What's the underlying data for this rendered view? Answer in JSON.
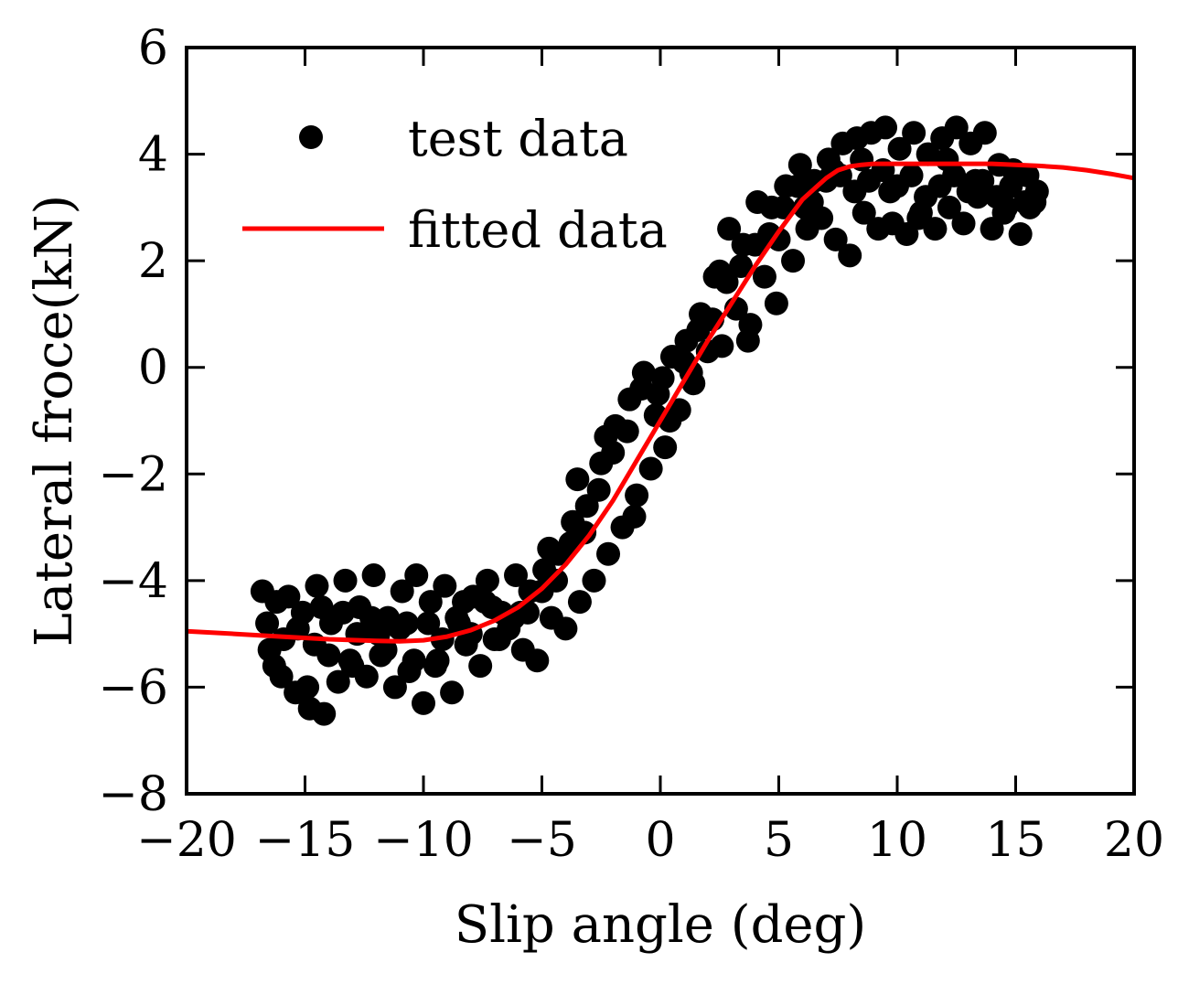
{
  "chart_data": {
    "type": "scatter",
    "title": "",
    "xlabel": "Slip angle (deg)",
    "ylabel": "Lateral froce(kN)",
    "xlim": [
      -20,
      20
    ],
    "ylim": [
      -8,
      6
    ],
    "xticks": [
      -20,
      -15,
      -10,
      -5,
      0,
      5,
      10,
      15,
      20
    ],
    "yticks": [
      -8,
      -6,
      -4,
      -2,
      0,
      2,
      4,
      6
    ],
    "xtick_labels": [
      "−20",
      "−15",
      "−10",
      "−5",
      "0",
      "5",
      "10",
      "15",
      "20"
    ],
    "ytick_labels": [
      "−8",
      "−6",
      "−4",
      "−2",
      "0",
      "2",
      "4",
      "6"
    ],
    "grid": false,
    "legend_position": "top-left",
    "series": [
      {
        "name": "test data",
        "kind": "scatter",
        "color": "#000000",
        "x": [
          -16.8,
          -16.5,
          -16.2,
          -16.0,
          -15.7,
          -15.4,
          -15.1,
          -14.8,
          -14.5,
          -14.2,
          -13.9,
          -13.6,
          -13.3,
          -13.0,
          -12.7,
          -12.4,
          -12.1,
          -11.8,
          -11.5,
          -11.2,
          -10.9,
          -10.6,
          -10.3,
          -10.0,
          -9.7,
          -9.4,
          -9.1,
          -8.8,
          -8.5,
          -8.2,
          -7.9,
          -7.6,
          -7.3,
          -7.0,
          -6.7,
          -6.4,
          -6.1,
          -5.8,
          -5.5,
          -5.2,
          -4.9,
          -4.6,
          -4.3,
          -4.0,
          -3.7,
          -3.4,
          -3.1,
          -2.8,
          -2.5,
          -2.2,
          -1.9,
          -1.6,
          -1.3,
          -1.0,
          -0.7,
          -0.4,
          -0.1,
          0.2,
          0.5,
          0.8,
          1.1,
          1.4,
          1.7,
          2.0,
          2.3,
          2.6,
          2.9,
          3.2,
          3.5,
          3.8,
          4.1,
          4.4,
          4.7,
          5.0,
          5.3,
          5.6,
          5.9,
          6.2,
          6.5,
          6.8,
          7.1,
          7.4,
          7.7,
          8.0,
          8.3,
          8.6,
          8.9,
          9.2,
          9.5,
          9.8,
          10.1,
          10.4,
          10.7,
          11.0,
          11.3,
          11.6,
          11.9,
          12.2,
          12.5,
          12.8,
          13.1,
          13.4,
          13.7,
          14.0,
          14.3,
          14.6,
          14.9,
          15.2,
          15.5,
          15.8,
          -16.6,
          -15.9,
          -15.3,
          -14.6,
          -14.0,
          -13.4,
          -12.8,
          -12.2,
          -11.6,
          -11.0,
          -10.4,
          -9.8,
          -9.2,
          -8.6,
          -8.0,
          -7.4,
          -6.8,
          -6.2,
          -5.6,
          -5.0,
          -4.4,
          -3.8,
          -3.2,
          -2.6,
          -2.0,
          -1.4,
          -0.8,
          -0.2,
          0.4,
          1.0,
          1.6,
          2.2,
          2.8,
          3.4,
          4.0,
          4.6,
          5.2,
          5.8,
          6.4,
          7.0,
          7.6,
          8.2,
          8.8,
          9.4,
          10.0,
          10.6,
          11.2,
          11.8,
          12.4,
          13.0,
          13.6,
          14.2,
          14.8,
          15.4,
          15.9,
          -16.3,
          -14.9,
          -14.3,
          -13.1,
          -11.9,
          -10.7,
          -9.5,
          -8.3,
          -7.1,
          -5.9,
          -4.7,
          -3.5,
          -2.3,
          -1.1,
          0.1,
          1.3,
          2.5,
          3.7,
          4.9,
          6.1,
          7.3,
          8.5,
          9.7,
          10.9,
          12.1,
          13.3,
          14.5,
          15.6
        ],
        "y": [
          -4.2,
          -5.3,
          -4.4,
          -5.8,
          -4.3,
          -6.1,
          -4.6,
          -6.4,
          -4.1,
          -6.5,
          -4.8,
          -5.9,
          -4.0,
          -5.6,
          -4.5,
          -5.8,
          -3.9,
          -5.4,
          -4.7,
          -6.0,
          -4.2,
          -5.7,
          -3.9,
          -6.3,
          -4.4,
          -5.5,
          -4.1,
          -6.1,
          -4.8,
          -5.2,
          -4.3,
          -5.6,
          -4.0,
          -5.1,
          -4.6,
          -4.9,
          -3.9,
          -5.3,
          -4.2,
          -5.5,
          -3.8,
          -4.7,
          -3.5,
          -4.9,
          -2.9,
          -4.4,
          -2.6,
          -4.0,
          -1.8,
          -3.5,
          -1.1,
          -3.0,
          -0.6,
          -2.4,
          -0.1,
          -1.9,
          -0.5,
          -1.5,
          0.2,
          -0.8,
          0.5,
          -0.3,
          1.0,
          0.3,
          1.7,
          0.4,
          2.6,
          1.1,
          2.3,
          0.8,
          3.1,
          1.7,
          3.0,
          2.4,
          3.4,
          2.0,
          3.8,
          2.6,
          3.5,
          2.8,
          3.9,
          2.4,
          4.2,
          2.1,
          4.3,
          2.9,
          4.4,
          2.6,
          4.5,
          2.7,
          4.1,
          2.5,
          4.4,
          2.9,
          4.0,
          2.6,
          4.3,
          3.0,
          4.5,
          2.7,
          4.2,
          3.2,
          4.4,
          2.6,
          3.8,
          3.0,
          3.7,
          2.5,
          3.6,
          3.1,
          -4.8,
          -5.1,
          -4.9,
          -5.2,
          -5.4,
          -4.6,
          -5.0,
          -4.7,
          -5.3,
          -4.9,
          -5.5,
          -4.8,
          -5.1,
          -4.7,
          -5.0,
          -4.4,
          -5.1,
          -4.7,
          -4.6,
          -4.2,
          -4.0,
          -3.3,
          -3.1,
          -2.3,
          -1.6,
          -1.2,
          -0.4,
          -0.9,
          -1.0,
          0.1,
          0.7,
          0.9,
          1.6,
          1.9,
          2.3,
          2.5,
          3.0,
          3.4,
          3.1,
          3.5,
          3.6,
          3.3,
          3.5,
          3.7,
          3.4,
          3.6,
          3.2,
          3.4,
          3.6,
          3.3,
          3.5,
          3.2,
          3.4,
          3.1,
          3.3,
          -5.6,
          -6.0,
          -4.5,
          -5.5,
          -5.0,
          -4.8,
          -5.6,
          -4.4,
          -4.5,
          -4.6,
          -3.4,
          -2.1,
          -1.3,
          -2.8,
          -0.2,
          -0.1,
          1.8,
          0.5,
          1.2,
          3.0,
          3.7,
          3.9,
          3.3,
          2.8,
          3.9,
          3.5,
          2.9,
          3.0
        ]
      },
      {
        "name": "fitted data",
        "kind": "line",
        "color": "#ff0000",
        "x": [
          -20,
          -18,
          -16,
          -14,
          -12,
          -11,
          -10,
          -9,
          -8,
          -7,
          -6,
          -5,
          -4,
          -3,
          -2,
          -1,
          0,
          1,
          2,
          3,
          4,
          5,
          6,
          7,
          7.5,
          8,
          8.5,
          9,
          10,
          11,
          12,
          13,
          14,
          15,
          16,
          17,
          18,
          19,
          20
        ],
        "y": [
          -4.95,
          -5.0,
          -5.05,
          -5.1,
          -5.13,
          -5.14,
          -5.12,
          -5.05,
          -4.93,
          -4.75,
          -4.5,
          -4.15,
          -3.7,
          -3.15,
          -2.5,
          -1.75,
          -1.0,
          -0.25,
          0.5,
          1.2,
          1.9,
          2.55,
          3.15,
          3.55,
          3.7,
          3.77,
          3.8,
          3.82,
          3.82,
          3.82,
          3.82,
          3.82,
          3.82,
          3.8,
          3.78,
          3.75,
          3.7,
          3.63,
          3.55
        ]
      }
    ]
  }
}
